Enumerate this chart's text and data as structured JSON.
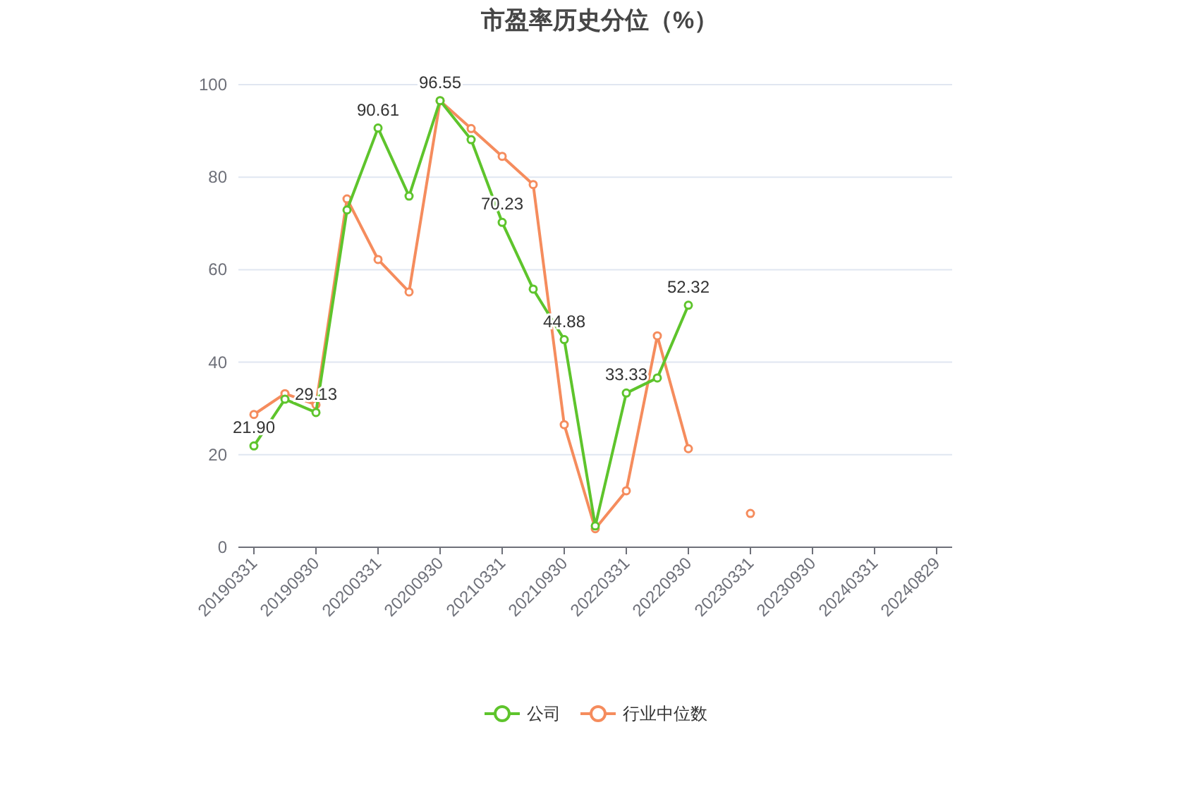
{
  "chart_data": {
    "type": "line",
    "title": "市盈率历史分位（%）",
    "categories": [
      "20190331",
      null,
      "20190930",
      null,
      "20200331",
      null,
      "20200930",
      null,
      "20210331",
      null,
      "20210930",
      null,
      "20220331",
      null,
      "20220930",
      null,
      "20230331",
      null,
      "20230930",
      null,
      "20240331",
      null,
      "20240829"
    ],
    "series": [
      {
        "name": "公司",
        "color": "#5ec42c",
        "values": [
          21.9,
          32.0,
          29.13,
          72.9,
          90.61,
          75.9,
          96.55,
          88.1,
          70.23,
          55.8,
          44.88,
          4.6,
          33.33,
          36.6,
          52.32,
          null,
          null,
          null,
          null,
          null,
          null,
          null,
          null
        ],
        "value_labels": [
          "21.90",
          null,
          "29.13",
          null,
          "90.61",
          null,
          "96.55",
          null,
          "70.23",
          null,
          "44.88",
          null,
          "33.33",
          null,
          "52.32",
          null,
          null,
          null,
          null,
          null,
          null,
          null,
          null
        ]
      },
      {
        "name": "行业中位数",
        "color": "#f58c5d",
        "values": [
          28.7,
          33.2,
          30.8,
          75.3,
          62.2,
          55.2,
          96.5,
          90.5,
          84.5,
          78.4,
          26.5,
          4.0,
          12.2,
          45.7,
          21.3,
          null,
          7.3,
          null,
          null,
          null,
          null,
          null,
          null
        ]
      }
    ],
    "ylim": [
      0,
      100
    ],
    "yticks": [
      0,
      20,
      40,
      60,
      80,
      100
    ],
    "grid": "y",
    "legend": "bottom",
    "marker": "circle"
  }
}
